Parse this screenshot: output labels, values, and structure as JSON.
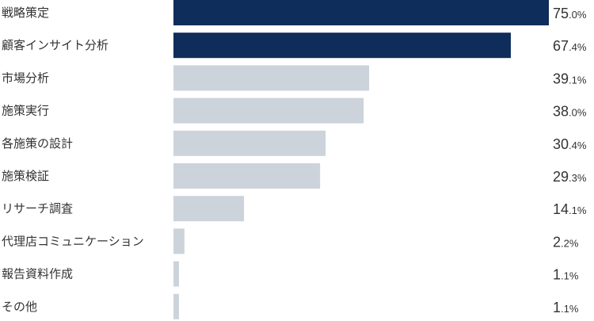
{
  "chart_data": {
    "type": "bar",
    "orientation": "horizontal",
    "categories": [
      "戦略策定",
      "顧客インサイト分析",
      "市場分析",
      "施策実行",
      "各施策の設計",
      "施策検証",
      "リサーチ調査",
      "代理店コミュニケーション",
      "報告資料作成",
      "その他"
    ],
    "values": [
      75.0,
      67.4,
      39.1,
      38.0,
      30.4,
      29.3,
      14.1,
      2.2,
      1.1,
      1.1
    ],
    "value_labels": [
      {
        "int": "75",
        "dec": ".0%"
      },
      {
        "int": "67",
        "dec": ".4%"
      },
      {
        "int": "39",
        "dec": ".1%"
      },
      {
        "int": "38",
        "dec": ".0%"
      },
      {
        "int": "30",
        "dec": ".4%"
      },
      {
        "int": "29",
        "dec": ".3%"
      },
      {
        "int": "14",
        "dec": ".1%"
      },
      {
        "int": "2",
        "dec": ".2%"
      },
      {
        "int": "1",
        "dec": ".1%"
      },
      {
        "int": "1",
        "dec": ".1%"
      }
    ],
    "highlight_count": 2,
    "colors": {
      "highlight": "#0f2d5a",
      "default": "#cdd3da",
      "text": "#333333"
    },
    "xlim": [
      0,
      75.0
    ],
    "grid": false,
    "legend": "none"
  }
}
